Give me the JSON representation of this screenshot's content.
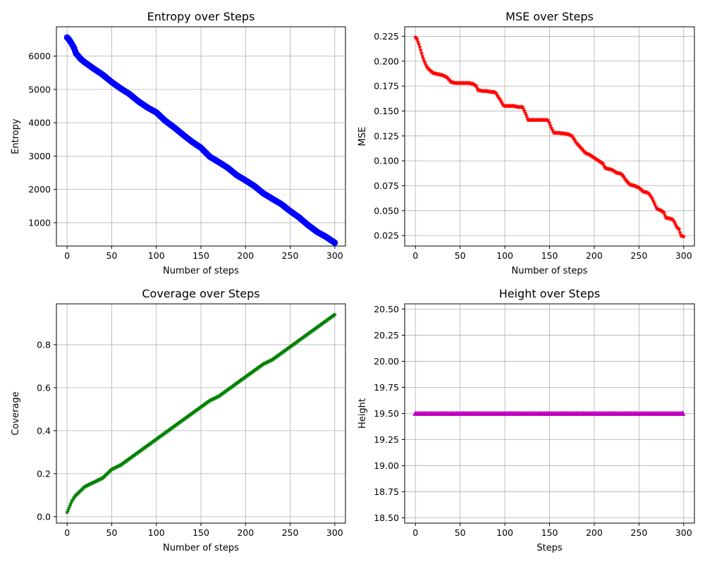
{
  "chart_data": [
    {
      "type": "line",
      "title": "Entropy over Steps",
      "xlabel": "Number of steps",
      "ylabel": "Entropy",
      "xlim": [
        -12,
        312
      ],
      "ylim": [
        300,
        6880
      ],
      "xticks": [
        0,
        50,
        100,
        150,
        200,
        250,
        300
      ],
      "yticks": [
        1000,
        2000,
        3000,
        4000,
        5000,
        6000
      ],
      "xtick_labels": [
        "0",
        "50",
        "100",
        "150",
        "200",
        "250",
        "300"
      ],
      "ytick_labels": [
        "1000",
        "2000",
        "3000",
        "4000",
        "5000",
        "6000"
      ],
      "grid": true,
      "color": "#0000ff",
      "marker": "circle",
      "series": [
        {
          "x": [
            0,
            2,
            5,
            8,
            10,
            15,
            20,
            30,
            40,
            50,
            60,
            70,
            80,
            90,
            100,
            110,
            120,
            130,
            140,
            150,
            160,
            170,
            180,
            190,
            200,
            210,
            220,
            230,
            240,
            250,
            260,
            270,
            280,
            290,
            300
          ],
          "values": [
            6560,
            6500,
            6380,
            6230,
            6080,
            5920,
            5810,
            5620,
            5440,
            5220,
            5030,
            4860,
            4640,
            4460,
            4310,
            4060,
            3860,
            3640,
            3430,
            3250,
            2980,
            2820,
            2650,
            2430,
            2270,
            2100,
            1880,
            1720,
            1560,
            1350,
            1160,
            930,
            730,
            580,
            400
          ]
        }
      ]
    },
    {
      "type": "line",
      "title": "MSE over Steps",
      "xlabel": "Number of steps",
      "ylabel": "MSE",
      "xlim": [
        -12,
        312
      ],
      "ylim": [
        0.0145,
        0.2345
      ],
      "xticks": [
        0,
        50,
        100,
        150,
        200,
        250,
        300
      ],
      "yticks": [
        0.025,
        0.05,
        0.075,
        0.1,
        0.125,
        0.15,
        0.175,
        0.2,
        0.225
      ],
      "xtick_labels": [
        "0",
        "50",
        "100",
        "150",
        "200",
        "250",
        "300"
      ],
      "ytick_labels": [
        "0.025",
        "0.050",
        "0.075",
        "0.100",
        "0.125",
        "0.150",
        "0.175",
        "0.200",
        "0.225"
      ],
      "grid": true,
      "color": "#ff0000",
      "marker": "star",
      "series": [
        {
          "x": [
            0,
            2,
            4,
            6,
            8,
            10,
            13,
            16,
            20,
            25,
            30,
            35,
            38,
            40,
            45,
            50,
            55,
            60,
            65,
            68,
            70,
            75,
            80,
            85,
            88,
            90,
            92,
            95,
            98,
            100,
            105,
            110,
            115,
            120,
            122,
            124,
            126,
            130,
            140,
            148,
            150,
            152,
            155,
            160,
            170,
            175,
            178,
            180,
            185,
            188,
            190,
            195,
            200,
            205,
            210,
            212,
            215,
            220,
            225,
            230,
            233,
            235,
            240,
            245,
            250,
            255,
            260,
            262,
            265,
            268,
            270,
            275,
            278,
            280,
            285,
            288,
            290,
            292,
            295,
            297,
            300
          ],
          "values": [
            0.224,
            0.222,
            0.217,
            0.211,
            0.205,
            0.2,
            0.194,
            0.191,
            0.188,
            0.187,
            0.186,
            0.184,
            0.181,
            0.179,
            0.178,
            0.178,
            0.178,
            0.178,
            0.177,
            0.175,
            0.171,
            0.17,
            0.17,
            0.169,
            0.169,
            0.168,
            0.165,
            0.161,
            0.156,
            0.155,
            0.155,
            0.155,
            0.154,
            0.154,
            0.15,
            0.146,
            0.141,
            0.141,
            0.141,
            0.141,
            0.138,
            0.133,
            0.128,
            0.128,
            0.127,
            0.125,
            0.121,
            0.118,
            0.113,
            0.11,
            0.108,
            0.106,
            0.103,
            0.1,
            0.097,
            0.093,
            0.092,
            0.091,
            0.088,
            0.087,
            0.084,
            0.081,
            0.076,
            0.075,
            0.073,
            0.069,
            0.068,
            0.066,
            0.062,
            0.056,
            0.052,
            0.05,
            0.048,
            0.043,
            0.042,
            0.041,
            0.038,
            0.034,
            0.031,
            0.025,
            0.024
          ]
        }
      ]
    },
    {
      "type": "line",
      "title": "Coverage over Steps",
      "xlabel": "Number of steps",
      "ylabel": "Coverage",
      "xlim": [
        -12,
        312
      ],
      "ylim": [
        -0.03,
        0.99
      ],
      "xticks": [
        0,
        50,
        100,
        150,
        200,
        250,
        300
      ],
      "yticks": [
        0.0,
        0.2,
        0.4,
        0.6,
        0.8
      ],
      "xtick_labels": [
        "0",
        "50",
        "100",
        "150",
        "200",
        "250",
        "300"
      ],
      "ytick_labels": [
        "0.0",
        "0.2",
        "0.4",
        "0.6",
        "0.8"
      ],
      "grid": true,
      "color": "#008000",
      "marker": "star",
      "series": [
        {
          "x": [
            0,
            2,
            5,
            8,
            10,
            15,
            20,
            30,
            40,
            50,
            60,
            70,
            80,
            90,
            100,
            110,
            120,
            130,
            140,
            150,
            160,
            170,
            180,
            190,
            200,
            210,
            220,
            230,
            240,
            250,
            260,
            270,
            280,
            290,
            300
          ],
          "values": [
            0.02,
            0.04,
            0.07,
            0.09,
            0.1,
            0.12,
            0.14,
            0.16,
            0.18,
            0.22,
            0.24,
            0.27,
            0.3,
            0.33,
            0.36,
            0.39,
            0.42,
            0.45,
            0.48,
            0.51,
            0.54,
            0.56,
            0.59,
            0.62,
            0.65,
            0.68,
            0.71,
            0.73,
            0.76,
            0.79,
            0.82,
            0.85,
            0.88,
            0.91,
            0.94
          ]
        }
      ]
    },
    {
      "type": "line",
      "title": "Height over Steps",
      "xlabel": "Steps",
      "ylabel": "Height",
      "xlim": [
        -12,
        312
      ],
      "ylim": [
        18.45,
        20.55
      ],
      "xticks": [
        0,
        50,
        100,
        150,
        200,
        250,
        300
      ],
      "yticks": [
        18.5,
        18.75,
        19.0,
        19.25,
        19.5,
        19.75,
        20.0,
        20.25,
        20.5
      ],
      "xtick_labels": [
        "0",
        "50",
        "100",
        "150",
        "200",
        "250",
        "300"
      ],
      "ytick_labels": [
        "18.50",
        "18.75",
        "19.00",
        "19.25",
        "19.50",
        "19.75",
        "20.00",
        "20.25",
        "20.50"
      ],
      "grid": true,
      "color": "#bf00bf",
      "marker": "triangle",
      "series": [
        {
          "x": [
            0,
            6,
            12,
            18,
            24,
            30,
            36,
            42,
            48,
            54,
            60,
            66,
            72,
            78,
            84,
            90,
            96,
            102,
            108,
            114,
            120,
            126,
            132,
            138,
            144,
            150,
            156,
            162,
            168,
            174,
            180,
            186,
            192,
            198,
            204,
            210,
            216,
            222,
            228,
            234,
            240,
            246,
            252,
            258,
            264,
            270,
            276,
            282,
            288,
            294,
            299
          ],
          "values": [
            19.5,
            19.5,
            19.5,
            19.5,
            19.5,
            19.5,
            19.5,
            19.5,
            19.5,
            19.5,
            19.5,
            19.5,
            19.5,
            19.5,
            19.5,
            19.5,
            19.5,
            19.5,
            19.5,
            19.5,
            19.5,
            19.5,
            19.5,
            19.5,
            19.5,
            19.5,
            19.5,
            19.5,
            19.5,
            19.5,
            19.5,
            19.5,
            19.5,
            19.5,
            19.5,
            19.5,
            19.5,
            19.5,
            19.5,
            19.5,
            19.5,
            19.5,
            19.5,
            19.5,
            19.5,
            19.5,
            19.5,
            19.5,
            19.5,
            19.5,
            19.5
          ]
        }
      ]
    }
  ]
}
